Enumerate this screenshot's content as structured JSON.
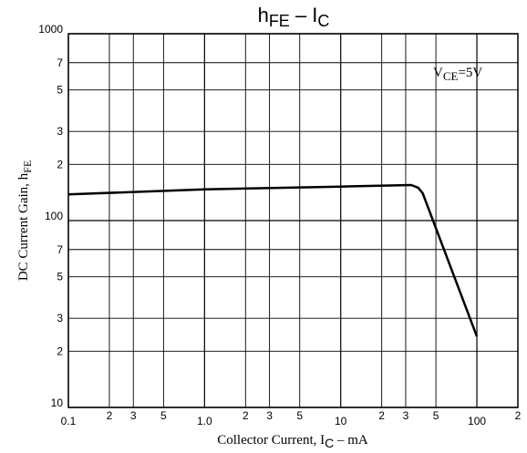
{
  "chart_data": {
    "type": "line",
    "title": {
      "main": "h",
      "sub": "FE",
      "sep": " – ",
      "main2": "I",
      "sub2": "C"
    },
    "y_label": {
      "main": "DC Current Gain, h",
      "sub": "FE"
    },
    "x_label": {
      "main": "Collector Current, I",
      "sub": "C",
      "unit": " – mA"
    },
    "annotation": {
      "main": "V",
      "sub": "CE",
      "rest": "=5V"
    },
    "x_scale": "log",
    "y_scale": "log",
    "grid": true,
    "xlim": [
      0.1,
      200
    ],
    "ylim": [
      10,
      1000
    ],
    "xticks": [
      {
        "value": 0.1,
        "label": "0.1"
      },
      {
        "value": 0.2,
        "label": "2"
      },
      {
        "value": 0.3,
        "label": "3"
      },
      {
        "value": 0.5,
        "label": "5"
      },
      {
        "value": 1,
        "label": "1.0"
      },
      {
        "value": 2,
        "label": "2"
      },
      {
        "value": 3,
        "label": "3"
      },
      {
        "value": 5,
        "label": "5"
      },
      10,
      {
        "value": 20,
        "label": "2"
      },
      {
        "value": 30,
        "label": "3"
      },
      {
        "value": 50,
        "label": "5"
      },
      100,
      {
        "value": 200,
        "label": "2"
      }
    ],
    "yticks": [
      10,
      {
        "value": 20,
        "label": "2"
      },
      {
        "value": 30,
        "label": "3"
      },
      {
        "value": 50,
        "label": "5"
      },
      {
        "value": 70,
        "label": "7"
      },
      100,
      {
        "value": 200,
        "label": "2"
      },
      {
        "value": 300,
        "label": "3"
      },
      {
        "value": 500,
        "label": "5"
      },
      {
        "value": 700,
        "label": "7"
      },
      1000
    ],
    "x": [
      0.1,
      1,
      10,
      33,
      37,
      40,
      100
    ],
    "series": [
      {
        "color": "#000000",
        "values": [
          138,
          147,
          152,
          155,
          150,
          140,
          24
        ]
      }
    ]
  }
}
